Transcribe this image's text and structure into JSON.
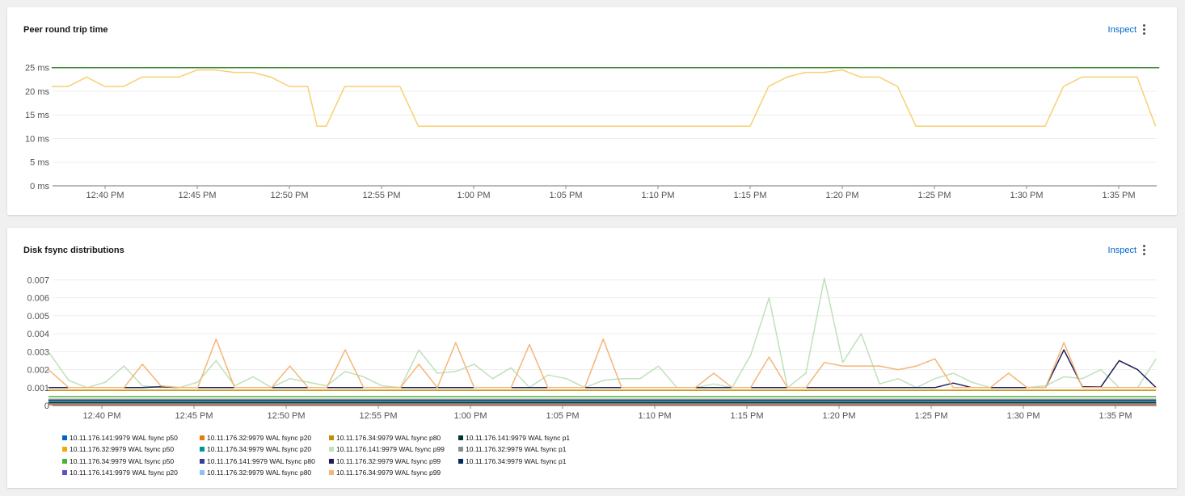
{
  "panels": [
    {
      "title": "Peer round trip time",
      "inspect_label": "Inspect"
    },
    {
      "title": "Disk fsync distributions",
      "inspect_label": "Inspect"
    }
  ],
  "icons": {
    "menu": "kebab-vertical-icon"
  },
  "chart_data": [
    {
      "type": "line",
      "title": "Peer round trip time",
      "x_ticks": [
        "12:40 PM",
        "12:45 PM",
        "12:50 PM",
        "12:55 PM",
        "1:00 PM",
        "1:05 PM",
        "1:10 PM",
        "1:15 PM",
        "1:20 PM",
        "1:25 PM",
        "1:30 PM",
        "1:35 PM"
      ],
      "y_ticks": [
        "0 ms",
        "5 ms",
        "10 ms",
        "15 ms",
        "20 ms",
        "25 ms"
      ],
      "ylim": [
        0,
        27
      ],
      "xlim_minutes": [
        37.1,
        97.2
      ],
      "grid": true,
      "series": [
        {
          "color": "#f6d173",
          "x": [
            37.1,
            38,
            39,
            40,
            41,
            42,
            43,
            44,
            45,
            46,
            47,
            48,
            49,
            50,
            51,
            51.5,
            52,
            53,
            54,
            55,
            56,
            57,
            58,
            59,
            60,
            61,
            62,
            63,
            64,
            65,
            66,
            67,
            68,
            69,
            70,
            71,
            72,
            73,
            74,
            75,
            76,
            77,
            78,
            79,
            80,
            81,
            82,
            83,
            84,
            85,
            86,
            87,
            88,
            89,
            90,
            91,
            92,
            93,
            94,
            95,
            96,
            97
          ],
          "y": [
            21,
            21,
            23,
            21,
            21,
            23,
            23,
            23,
            24.5,
            24.5,
            24,
            24,
            23,
            21,
            21,
            12.6,
            12.6,
            21,
            21,
            21,
            21,
            12.6,
            12.6,
            12.6,
            12.6,
            12.6,
            12.6,
            12.6,
            12.6,
            12.6,
            12.6,
            12.6,
            12.6,
            12.6,
            12.6,
            12.6,
            12.6,
            12.6,
            12.6,
            12.6,
            21,
            23,
            24,
            24,
            24.5,
            23,
            23,
            21,
            12.6,
            12.6,
            12.6,
            12.6,
            12.6,
            12.6,
            12.6,
            12.6,
            21,
            23,
            23,
            23,
            23,
            12.6
          ]
        },
        {
          "color": "#3e8635",
          "x": [
            37.1,
            97.2
          ],
          "y": [
            25,
            25
          ]
        }
      ]
    },
    {
      "type": "line",
      "title": "Disk fsync distributions",
      "x_ticks": [
        "12:40 PM",
        "12:45 PM",
        "12:50 PM",
        "12:55 PM",
        "1:00 PM",
        "1:05 PM",
        "1:10 PM",
        "1:15 PM",
        "1:20 PM",
        "1:25 PM",
        "1:30 PM",
        "1:35 PM"
      ],
      "y_ticks": [
        "0",
        "0.001",
        "0.002",
        "0.003",
        "0.004",
        "0.005",
        "0.006",
        "0.007"
      ],
      "ylim": [
        0,
        0.0072
      ],
      "xlim_minutes": [
        37.1,
        97.2
      ],
      "grid": true,
      "series": [
        {
          "name": "10.11.176.141:9979 WAL fsync p50",
          "color": "#0066cc",
          "const": 0.0001
        },
        {
          "name": "10.11.176.32:9979 WAL fsync p50",
          "color": "#f0ab00",
          "const": 0.00012
        },
        {
          "name": "10.11.176.34:9979 WAL fsync p50",
          "color": "#4cb140",
          "const": 0.0005
        },
        {
          "name": "10.11.176.141:9979 WAL fsync p20",
          "color": "#5752d1",
          "const": 5e-05
        },
        {
          "name": "10.11.176.32:9979 WAL fsync p20",
          "color": "#ec7a08",
          "const": 8e-05
        },
        {
          "name": "10.11.176.34:9979 WAL fsync p20",
          "color": "#009596",
          "const": 0.00015
        },
        {
          "name": "10.11.176.141:9979 WAL fsync p80",
          "color": "#3c3d99",
          "const": 0.00022
        },
        {
          "name": "10.11.176.32:9979 WAL fsync p80",
          "color": "#8bc1f7",
          "const": 0.00025
        },
        {
          "name": "10.11.176.34:9979 WAL fsync p80",
          "color": "#c58c00",
          "const": 0.00085
        },
        {
          "name": "10.11.176.141:9979 WAL fsync p99",
          "color": "#bde2b9",
          "x": [
            37.1,
            38.2,
            39.2,
            40.2,
            41.2,
            42.2,
            43.2,
            44.2,
            45.2,
            46.2,
            47.2,
            48.2,
            49.2,
            50.2,
            51.2,
            52.2,
            53.2,
            54.2,
            55.2,
            56.2,
            57.2,
            58.2,
            59.2,
            60.2,
            61.2,
            62.2,
            63.2,
            64.2,
            65.2,
            66.2,
            67.2,
            68.2,
            69.2,
            70.2,
            71.2,
            72.2,
            73.2,
            74.2,
            75.2,
            76.2,
            77.2,
            78.2,
            79.2,
            80.2,
            81.2,
            82.2,
            83.2,
            84.2,
            85.2,
            86.2,
            87.2,
            88.2,
            89.2,
            90.2,
            91.2,
            92.2,
            93.2,
            94.2,
            95.2,
            96.2,
            97.2
          ],
          "y": [
            0.003,
            0.0014,
            0.001,
            0.0013,
            0.0022,
            0.0011,
            0.001,
            0.001,
            0.0013,
            0.0025,
            0.0011,
            0.0016,
            0.001,
            0.0015,
            0.0013,
            0.0011,
            0.0019,
            0.0016,
            0.0011,
            0.001,
            0.0031,
            0.0018,
            0.0019,
            0.0023,
            0.0015,
            0.0021,
            0.001,
            0.0017,
            0.0015,
            0.001,
            0.0014,
            0.0015,
            0.0015,
            0.0022,
            0.001,
            0.001,
            0.0012,
            0.001,
            0.0028,
            0.006,
            0.001,
            0.0018,
            0.0071,
            0.0024,
            0.004,
            0.0012,
            0.0015,
            0.001,
            0.0015,
            0.0018,
            0.0013,
            0.001,
            0.001,
            0.001,
            0.0011,
            0.0016,
            0.0015,
            0.002,
            0.001,
            0.001,
            0.0026
          ]
        },
        {
          "name": "10.11.176.32:9979 WAL fsync p99",
          "color": "#1f1d5c",
          "x": [
            37.1,
            38.2,
            39.2,
            40.2,
            41.2,
            42.2,
            43.2,
            44.2,
            45.2,
            46.2,
            47.2,
            48.2,
            49.2,
            50.2,
            51.2,
            52.2,
            53.2,
            54.2,
            55.2,
            56.2,
            57.2,
            58.2,
            59.2,
            60.2,
            61.2,
            62.2,
            63.2,
            64.2,
            65.2,
            66.2,
            67.2,
            68.2,
            69.2,
            70.2,
            71.2,
            72.2,
            73.2,
            74.2,
            75.2,
            76.2,
            77.2,
            78.2,
            79.2,
            80.2,
            81.2,
            82.2,
            83.2,
            84.2,
            85.2,
            86.2,
            87.2,
            88.2,
            89.2,
            90.2,
            91.2,
            92.2,
            93.2,
            94.2,
            95.2,
            96.2,
            97.2
          ],
          "y": [
            0.001,
            0.001,
            0.001,
            0.001,
            0.001,
            0.001,
            0.00105,
            0.001,
            0.001,
            0.001,
            0.001,
            0.001,
            0.001,
            0.001,
            0.001,
            0.001,
            0.001,
            0.001,
            0.001,
            0.001,
            0.001,
            0.001,
            0.001,
            0.001,
            0.001,
            0.001,
            0.001,
            0.001,
            0.001,
            0.001,
            0.001,
            0.001,
            0.001,
            0.001,
            0.001,
            0.001,
            0.001,
            0.001,
            0.001,
            0.001,
            0.001,
            0.001,
            0.001,
            0.001,
            0.001,
            0.001,
            0.001,
            0.001,
            0.001,
            0.00125,
            0.001,
            0.001,
            0.001,
            0.001,
            0.001,
            0.0031,
            0.00105,
            0.00103,
            0.0025,
            0.002,
            0.001
          ]
        },
        {
          "name": "10.11.176.34:9979 WAL fsync p99",
          "color": "#f4b678",
          "x": [
            37.1,
            38.2,
            39.2,
            40.2,
            41.2,
            42.2,
            43.2,
            44.2,
            45.2,
            46.2,
            47.2,
            48.2,
            49.2,
            50.2,
            51.2,
            52.2,
            53.2,
            54.2,
            55.2,
            56.2,
            57.2,
            58.2,
            59.2,
            60.2,
            61.2,
            62.2,
            63.2,
            64.2,
            65.2,
            66.2,
            67.2,
            68.2,
            69.2,
            70.2,
            71.2,
            72.2,
            73.2,
            74.2,
            75.2,
            76.2,
            77.2,
            78.2,
            79.2,
            80.2,
            81.2,
            82.2,
            83.2,
            84.2,
            85.2,
            86.2,
            87.2,
            88.2,
            89.2,
            90.2,
            91.2,
            92.2,
            93.2,
            94.2,
            95.2,
            96.2,
            97.2
          ],
          "y": [
            0.002,
            0.001,
            0.001,
            0.001,
            0.001,
            0.0023,
            0.0011,
            0.001,
            0.001,
            0.0037,
            0.001,
            0.001,
            0.001,
            0.0022,
            0.001,
            0.001,
            0.0031,
            0.001,
            0.001,
            0.001,
            0.0023,
            0.001,
            0.0035,
            0.001,
            0.001,
            0.001,
            0.0034,
            0.001,
            0.001,
            0.001,
            0.0037,
            0.001,
            0.001,
            0.001,
            0.001,
            0.001,
            0.0018,
            0.001,
            0.001,
            0.0027,
            0.001,
            0.001,
            0.0024,
            0.0022,
            0.0022,
            0.0022,
            0.002,
            0.0022,
            0.0026,
            0.001,
            0.001,
            0.001,
            0.0018,
            0.001,
            0.001,
            0.0035,
            0.001,
            0.001,
            0.001,
            0.001,
            0.001
          ]
        },
        {
          "name": "10.11.176.141:9979 WAL fsync p1",
          "color": "#003737",
          "const": 0.0003
        },
        {
          "name": "10.11.176.32:9979 WAL fsync p1",
          "color": "#8a8d90",
          "const": 0.00035
        },
        {
          "name": "10.11.176.34:9979 WAL fsync p1",
          "color": "#002f5d",
          "const": 0.00018
        }
      ]
    }
  ]
}
